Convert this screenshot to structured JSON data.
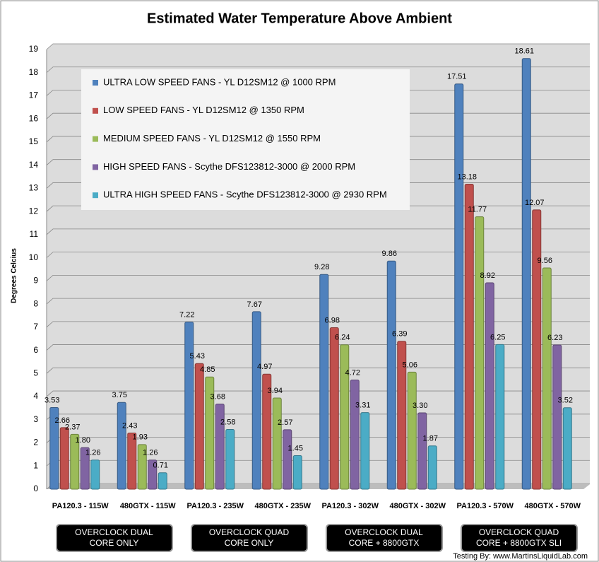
{
  "chart_data": {
    "type": "bar",
    "title": "Estimated Water Temperature Above Ambient",
    "y_label": "Degrees Celcius",
    "credit": "Testing By: www.MartinsLiquidLab.com",
    "categories": [
      "PA120.3 - 115W",
      "480GTX - 115W",
      "PA120.3 - 235W",
      "480GTX - 235W",
      "PA120.3 - 302W",
      "480GTX - 302W",
      "PA120.3 - 570W",
      "480GTX - 570W"
    ],
    "group_labels": [
      "OVERCLOCK DUAL CORE ONLY",
      "OVERCLOCK QUAD CORE ONLY",
      "OVERCLOCK DUAL CORE + 8800GTX",
      "OVERCLOCK QUAD CORE + 8800GTX SLI"
    ],
    "series": [
      {
        "name": "ULTRA LOW SPEED FANS - YL D12SM12 @ 1000 RPM",
        "color": "#4f81bd",
        "values": [
          3.53,
          3.75,
          7.22,
          7.67,
          9.28,
          9.86,
          17.51,
          18.61
        ],
        "value_labels": [
          "3.53",
          "3.75",
          "7.22",
          "7.67",
          "9.28",
          "9.86",
          "17.51",
          "18.61"
        ]
      },
      {
        "name": "LOW SPEED FANS - YL D12SM12 @ 1350 RPM",
        "color": "#c0504d",
        "values": [
          2.66,
          2.43,
          5.43,
          4.97,
          6.98,
          6.39,
          13.18,
          12.07
        ],
        "value_labels": [
          "2.66",
          "2.43",
          "5.43",
          "4.97",
          "6.98",
          "6.39",
          "13.18",
          "12.07"
        ]
      },
      {
        "name": "MEDIUM SPEED FANS - YL D12SM12 @ 1550 RPM",
        "color": "#9bbb59",
        "values": [
          2.37,
          1.93,
          4.85,
          3.94,
          6.24,
          5.06,
          11.77,
          9.56
        ],
        "value_labels": [
          "2.37",
          "1.93",
          "4.85",
          "3.94",
          "6.24",
          "5.06",
          "11.77",
          "9.56"
        ]
      },
      {
        "name": "HIGH SPEED FANS - Scythe DFS123812-3000 @ 2000 RPM",
        "color": "#8064a2",
        "values": [
          1.8,
          1.26,
          3.68,
          2.57,
          4.72,
          3.3,
          8.92,
          6.23
        ],
        "value_labels": [
          "1.80",
          "1.26",
          "3.68",
          "2.57",
          "4.72",
          "3.30",
          "8.92",
          "6.23"
        ]
      },
      {
        "name": "ULTRA HIGH SPEED FANS - Scythe DFS123812-3000 @ 2930 RPM",
        "color": "#4bacc6",
        "values": [
          1.26,
          0.71,
          2.58,
          1.45,
          3.31,
          1.87,
          6.25,
          3.52
        ],
        "value_labels": [
          "1.26",
          "0.71",
          "2.58",
          "1.45",
          "3.31",
          "1.87",
          "6.25",
          "3.52"
        ]
      }
    ],
    "ylim": [
      0,
      19
    ],
    "yticks": [
      0,
      1,
      2,
      3,
      4,
      5,
      6,
      7,
      8,
      9,
      10,
      11,
      12,
      13,
      14,
      15,
      16,
      17,
      18,
      19
    ],
    "grid": true
  }
}
